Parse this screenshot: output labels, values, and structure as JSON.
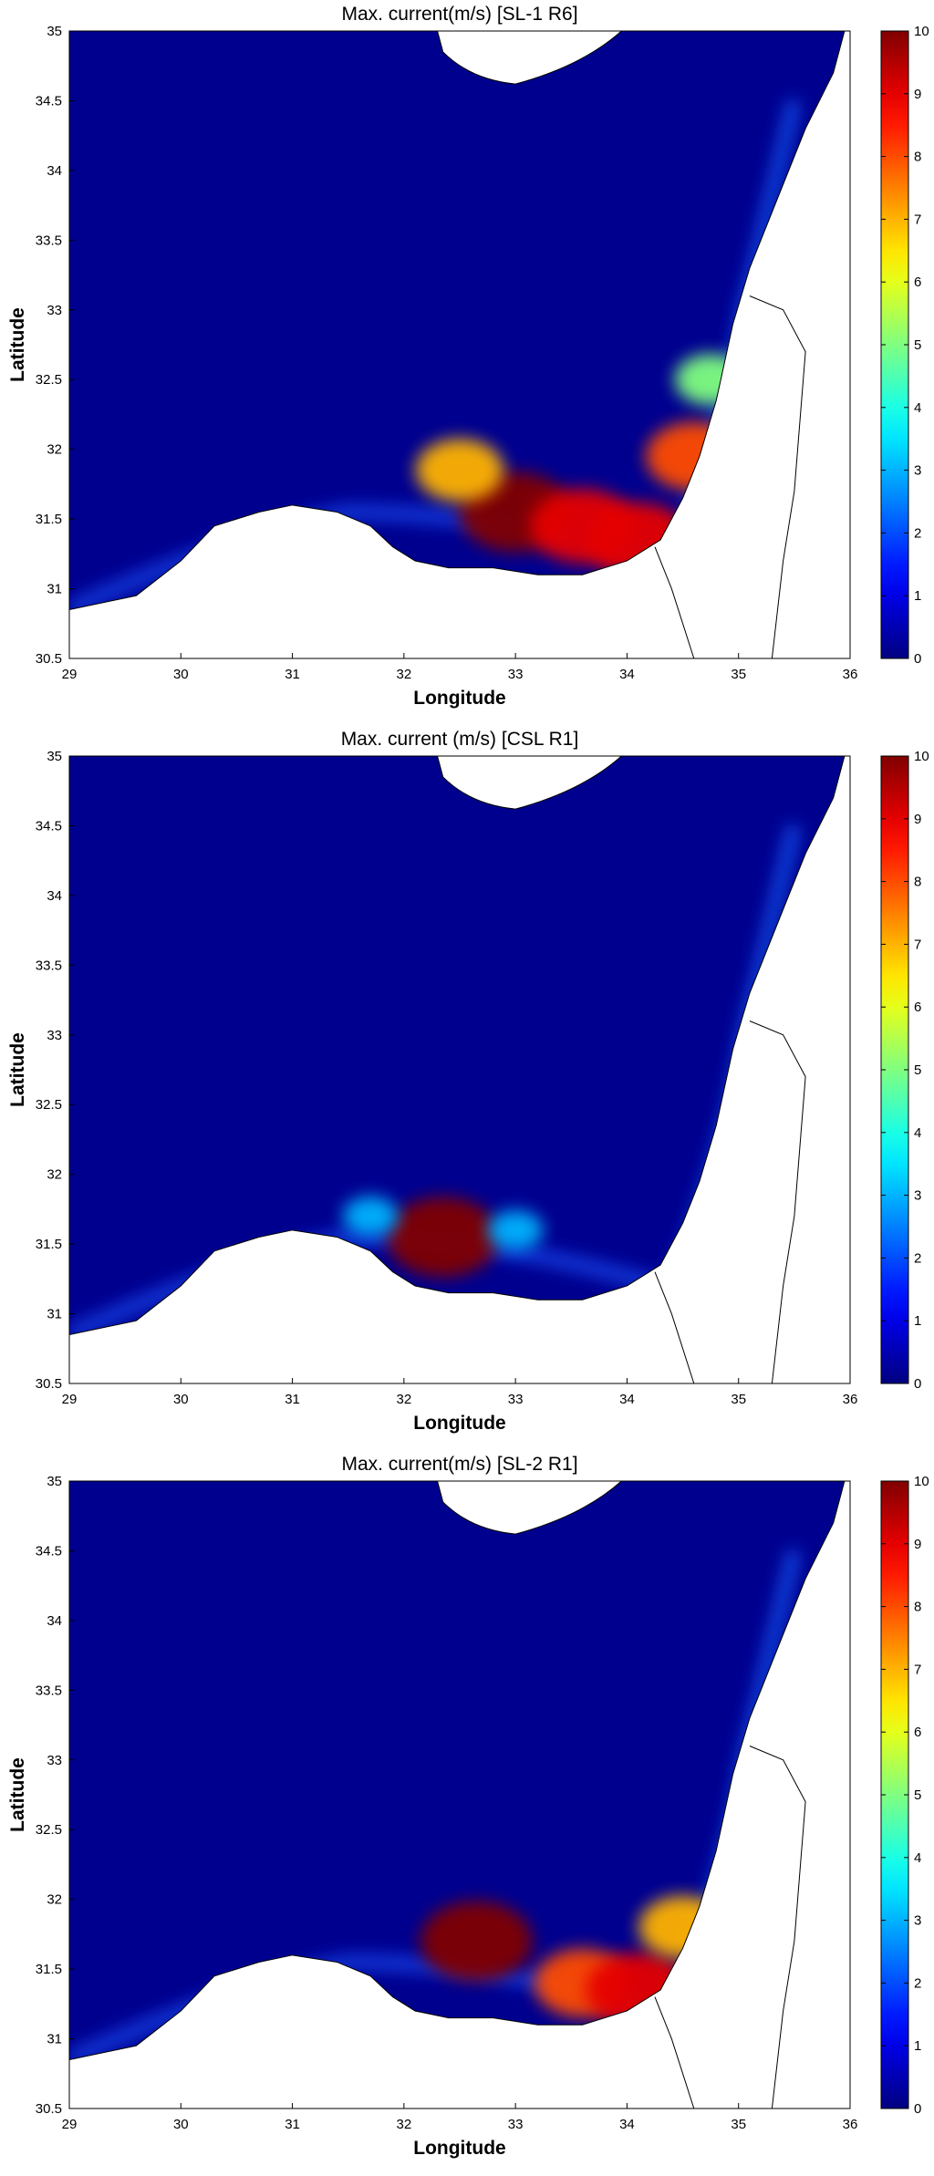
{
  "chart_data": [
    {
      "type": "heatmap",
      "title": "Max. current(m/s) [SL-1 R6]",
      "xlabel": "Longitude",
      "ylabel": "Latitude",
      "xlim": [
        29,
        36
      ],
      "ylim": [
        30.5,
        35
      ],
      "x_ticks": [
        "29",
        "30",
        "31",
        "32",
        "33",
        "34",
        "35",
        "36"
      ],
      "y_ticks": [
        "30.5",
        "31",
        "31.5",
        "32",
        "32.5",
        "33",
        "33.5",
        "34",
        "34.5",
        "35"
      ],
      "colorbar": {
        "min": 0,
        "max": 10,
        "ticks": [
          "0",
          "1",
          "2",
          "3",
          "4",
          "5",
          "6",
          "7",
          "8",
          "9",
          "10"
        ],
        "colormap": "jet"
      },
      "hotspots": [
        {
          "lon": 33.0,
          "lat": 31.55,
          "value": 10
        },
        {
          "lon": 33.6,
          "lat": 31.45,
          "value": 9
        },
        {
          "lon": 34.1,
          "lat": 31.35,
          "value": 9
        },
        {
          "lon": 34.6,
          "lat": 31.95,
          "value": 8
        },
        {
          "lon": 34.75,
          "lat": 32.5,
          "value": 5
        },
        {
          "lon": 32.5,
          "lat": 31.85,
          "value": 7
        }
      ]
    },
    {
      "type": "heatmap",
      "title": "Max. current (m/s) [CSL R1]",
      "xlabel": "Longitude",
      "ylabel": "Latitude",
      "xlim": [
        29,
        36
      ],
      "ylim": [
        30.5,
        35
      ],
      "x_ticks": [
        "29",
        "30",
        "31",
        "32",
        "33",
        "34",
        "35",
        "36"
      ],
      "y_ticks": [
        "30.5",
        "31",
        "31.5",
        "32",
        "32.5",
        "33",
        "33.5",
        "34",
        "34.5",
        "35"
      ],
      "colorbar": {
        "min": 0,
        "max": 10,
        "ticks": [
          "0",
          "1",
          "2",
          "3",
          "4",
          "5",
          "6",
          "7",
          "8",
          "9",
          "10"
        ],
        "colormap": "jet"
      },
      "hotspots": [
        {
          "lon": 32.35,
          "lat": 31.55,
          "value": 10
        },
        {
          "lon": 31.7,
          "lat": 31.7,
          "value": 3
        },
        {
          "lon": 33.0,
          "lat": 31.6,
          "value": 3
        }
      ]
    },
    {
      "type": "heatmap",
      "title": "Max. current(m/s) [SL-2 R1]",
      "xlabel": "Longitude",
      "ylabel": "Latitude",
      "xlim": [
        29,
        36
      ],
      "ylim": [
        30.5,
        35
      ],
      "x_ticks": [
        "29",
        "30",
        "31",
        "32",
        "33",
        "34",
        "35",
        "36"
      ],
      "y_ticks": [
        "30.5",
        "31",
        "31.5",
        "32",
        "32.5",
        "33",
        "33.5",
        "34",
        "34.5",
        "35"
      ],
      "colorbar": {
        "min": 0,
        "max": 10,
        "ticks": [
          "0",
          "1",
          "2",
          "3",
          "4",
          "5",
          "6",
          "7",
          "8",
          "9",
          "10"
        ],
        "colormap": "jet"
      },
      "hotspots": [
        {
          "lon": 32.65,
          "lat": 31.7,
          "value": 10
        },
        {
          "lon": 33.6,
          "lat": 31.4,
          "value": 8
        },
        {
          "lon": 34.1,
          "lat": 31.35,
          "value": 9
        },
        {
          "lon": 34.5,
          "lat": 31.8,
          "value": 7
        }
      ]
    }
  ]
}
